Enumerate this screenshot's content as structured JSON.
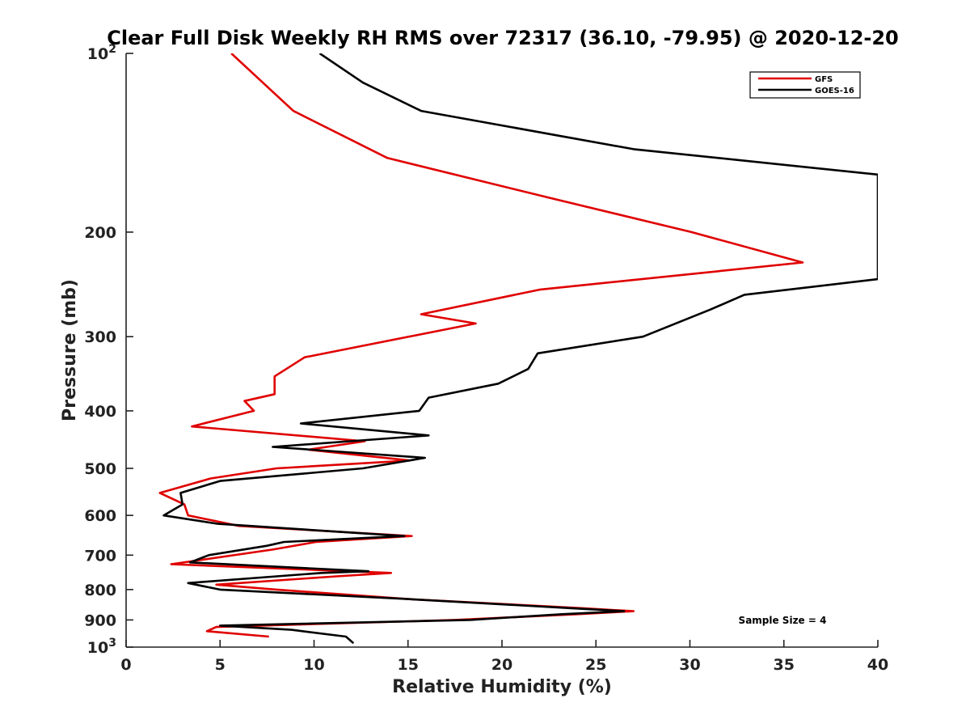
{
  "chart_data": {
    "type": "line",
    "title": "Clear Full Disk Weekly RH RMS over 72317 (36.10, -79.95) @ 2020-12-20",
    "xlabel": "Relative Humidity (%)",
    "ylabel": "Pressure (mb)",
    "xlim": [
      0,
      40
    ],
    "ylim": [
      100,
      1000
    ],
    "y_scale": "log",
    "y_reversed": true,
    "grid": false,
    "legend_position": "top-right",
    "x_ticks": [
      0,
      5,
      10,
      15,
      20,
      25,
      30,
      35,
      40
    ],
    "x_tick_labels": [
      "0",
      "5",
      "10",
      "15",
      "20",
      "25",
      "30",
      "35",
      "40"
    ],
    "y_ticks": [
      100,
      200,
      300,
      400,
      500,
      600,
      700,
      800,
      900,
      1000
    ],
    "y_tick_labels": [
      {
        "base": "10",
        "exp": "2"
      },
      {
        "base": "200",
        "exp": ""
      },
      {
        "base": "300",
        "exp": ""
      },
      {
        "base": "400",
        "exp": ""
      },
      {
        "base": "500",
        "exp": ""
      },
      {
        "base": "600",
        "exp": ""
      },
      {
        "base": "700",
        "exp": ""
      },
      {
        "base": "800",
        "exp": ""
      },
      {
        "base": "900",
        "exp": ""
      },
      {
        "base": "10",
        "exp": "3"
      }
    ],
    "annotation": "Sample Size = 4",
    "series": [
      {
        "name": "GFS",
        "color": "#e00000",
        "points": [
          [
            5.6,
            100
          ],
          [
            8.9,
            125
          ],
          [
            13.9,
            150
          ],
          [
            22.5,
            175
          ],
          [
            30.1,
            200
          ],
          [
            36.0,
            225
          ],
          [
            22.0,
            250
          ],
          [
            15.7,
            275
          ],
          [
            18.6,
            285
          ],
          [
            9.5,
            325
          ],
          [
            7.9,
            350
          ],
          [
            7.9,
            375
          ],
          [
            6.3,
            385
          ],
          [
            6.8,
            400
          ],
          [
            3.5,
            425
          ],
          [
            12.7,
            450
          ],
          [
            9.7,
            465
          ],
          [
            15.1,
            485
          ],
          [
            8.0,
            500
          ],
          [
            4.5,
            520
          ],
          [
            1.8,
            550
          ],
          [
            3.1,
            575
          ],
          [
            3.3,
            600
          ],
          [
            6.0,
            625
          ],
          [
            15.2,
            650
          ],
          [
            10.1,
            665
          ],
          [
            7.8,
            685
          ],
          [
            2.4,
            725
          ],
          [
            14.1,
            750
          ],
          [
            11.2,
            760
          ],
          [
            4.8,
            785
          ],
          [
            8.0,
            800
          ],
          [
            15.0,
            830
          ],
          [
            24.3,
            860
          ],
          [
            27.0,
            870
          ],
          [
            24.0,
            880
          ],
          [
            17.5,
            900
          ],
          [
            4.8,
            925
          ],
          [
            4.3,
            940
          ],
          [
            7.6,
            960
          ]
        ]
      },
      {
        "name": "GOES-16",
        "color": "#000000",
        "points": [
          [
            10.3,
            100
          ],
          [
            12.6,
            112
          ],
          [
            15.7,
            125
          ],
          [
            27.0,
            145
          ],
          [
            40.0,
            160
          ],
          [
            40.0,
            240
          ],
          [
            32.9,
            255
          ],
          [
            31.1,
            270
          ],
          [
            27.5,
            300
          ],
          [
            21.9,
            320
          ],
          [
            21.4,
            340
          ],
          [
            19.8,
            360
          ],
          [
            16.1,
            380
          ],
          [
            15.6,
            400
          ],
          [
            9.3,
            420
          ],
          [
            16.1,
            440
          ],
          [
            7.8,
            460
          ],
          [
            15.9,
            480
          ],
          [
            12.6,
            500
          ],
          [
            5.0,
            525
          ],
          [
            2.9,
            550
          ],
          [
            3.0,
            575
          ],
          [
            2.0,
            600
          ],
          [
            4.9,
            620
          ],
          [
            14.8,
            650
          ],
          [
            8.4,
            665
          ],
          [
            7.5,
            675
          ],
          [
            4.4,
            700
          ],
          [
            3.4,
            720
          ],
          [
            12.9,
            745
          ],
          [
            10.4,
            750
          ],
          [
            3.3,
            780
          ],
          [
            5.0,
            800
          ],
          [
            15.0,
            830
          ],
          [
            23.7,
            860
          ],
          [
            26.5,
            870
          ],
          [
            23.2,
            880
          ],
          [
            18.3,
            900
          ],
          [
            5.0,
            920
          ],
          [
            8.8,
            935
          ],
          [
            11.7,
            960
          ],
          [
            12.1,
            985
          ]
        ]
      }
    ]
  }
}
